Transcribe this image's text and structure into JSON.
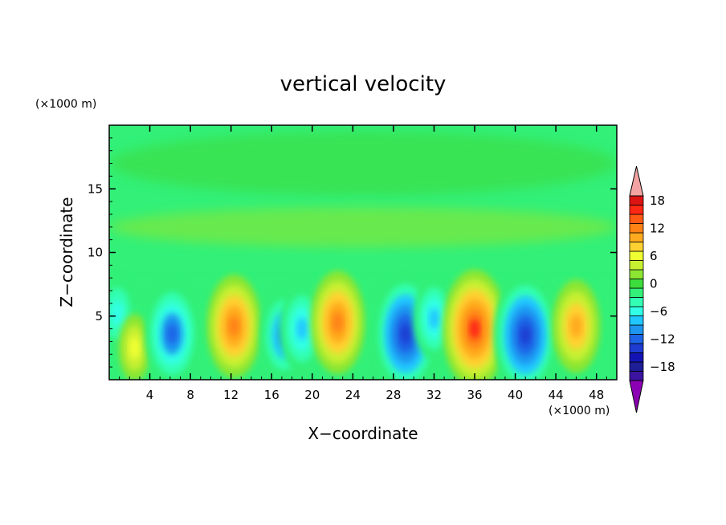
{
  "chart_data": {
    "type": "heatmap",
    "title": "vertical velocity",
    "xlabel": "X−coordinate",
    "ylabel": "Z−coordinate",
    "x_unit": "(×1000 m)",
    "y_unit": "(×1000 m)",
    "xlim": [
      0,
      50
    ],
    "ylim": [
      0,
      20
    ],
    "x_ticks": [
      4,
      8,
      12,
      16,
      20,
      24,
      28,
      32,
      36,
      40,
      44,
      48
    ],
    "y_ticks": [
      5,
      10,
      15
    ],
    "colorbar": {
      "levels_min": -21,
      "levels_step": 2,
      "tick_values": [
        -18,
        -12,
        -6,
        0,
        6,
        12,
        18
      ],
      "tick_labels": [
        "−18",
        "−12",
        "−6",
        "0",
        "6",
        "12",
        "18"
      ],
      "colors": [
        "#8c00b4",
        "#3c14a0",
        "#1e1e96",
        "#1414b4",
        "#1e3cd2",
        "#1e64e6",
        "#1e96f0",
        "#20c8ff",
        "#32ffe6",
        "#32ffb4",
        "#32f078",
        "#3cdc3c",
        "#8ce632",
        "#c8f032",
        "#f0ff32",
        "#ffd232",
        "#ffaa1e",
        "#ff8214",
        "#ff5a14",
        "#ff2814",
        "#dc1414",
        "#f4a3a3"
      ],
      "extends": "both"
    },
    "cells": [
      {
        "x": 0.8,
        "z": 5.2,
        "w": -7
      },
      {
        "x": 2.5,
        "z": 2.5,
        "w": 5
      },
      {
        "x": 6.2,
        "z": 3.6,
        "w": -12
      },
      {
        "x": 12.3,
        "z": 4.2,
        "w": 12
      },
      {
        "x": 17.2,
        "z": 3.5,
        "w": -10
      },
      {
        "x": 19.0,
        "z": 4.0,
        "w": -9
      },
      {
        "x": 22.5,
        "z": 4.5,
        "w": 12
      },
      {
        "x": 29.2,
        "z": 3.6,
        "w": -15
      },
      {
        "x": 32.0,
        "z": 4.8,
        "w": -8
      },
      {
        "x": 36.0,
        "z": 4.0,
        "w": 15
      },
      {
        "x": 41.0,
        "z": 3.5,
        "w": -15
      },
      {
        "x": 46.0,
        "z": 4.2,
        "w": 10
      },
      {
        "x": 25.0,
        "z": 17.0,
        "w": 0
      },
      {
        "x": 25.0,
        "z": 12.0,
        "w": 1
      }
    ]
  }
}
